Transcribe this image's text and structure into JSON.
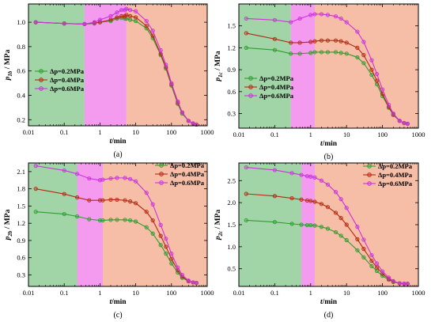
{
  "colors": {
    "series": [
      "#2e9e2e",
      "#b52a12",
      "#cc33dd"
    ],
    "bands": [
      "#6fbf7a",
      "#ee66e6",
      "#f19a78"
    ]
  },
  "chart_data": [
    {
      "type": "line",
      "panel_label": "(a)",
      "ylabel_symbol": "p",
      "ylabel_sub": "1b",
      "ylabel_unit": " / MPa",
      "xlabel_symbol": "t",
      "xlabel_unit": "/min",
      "xscale": "log",
      "xlim": [
        0.01,
        1000
      ],
      "ylim": [
        0.15,
        1.15
      ],
      "xticks": [
        0.01,
        0.1,
        1,
        10,
        100,
        1000
      ],
      "xtick_labels": [
        "0.01",
        "0.1",
        "1",
        "10",
        "100",
        "1000"
      ],
      "yticks": [
        0.2,
        0.4,
        0.6,
        0.8,
        1.0
      ],
      "ytick_labels": [
        "0.2",
        "0.4",
        "0.6",
        "0.8",
        "1.0"
      ],
      "bands": [
        [
          0.01,
          0.37
        ],
        [
          0.37,
          5.5
        ],
        [
          5.5,
          1000
        ]
      ],
      "legend_position": "left",
      "series": [
        {
          "name": "Δp=0.2MPa",
          "x": [
            0.016,
            0.1,
            0.37,
            0.7,
            1,
            2,
            3,
            4,
            5,
            5.5,
            7,
            10,
            20,
            30,
            50,
            70,
            100,
            150,
            200,
            300,
            400,
            500
          ],
          "y": [
            1.0,
            0.99,
            0.985,
            0.99,
            1.0,
            1.01,
            1.03,
            1.035,
            1.03,
            1.03,
            1.02,
            1.01,
            0.95,
            0.87,
            0.73,
            0.62,
            0.48,
            0.33,
            0.25,
            0.19,
            0.17,
            0.16
          ]
        },
        {
          "name": "Δp=0.4MPa",
          "x": [
            0.016,
            0.1,
            0.37,
            0.7,
            1,
            2,
            3,
            4,
            5,
            5.5,
            7,
            10,
            20,
            30,
            50,
            70,
            100,
            150,
            200,
            300,
            400,
            500
          ],
          "y": [
            1.0,
            0.99,
            0.985,
            0.995,
            1.0,
            1.02,
            1.04,
            1.05,
            1.05,
            1.06,
            1.05,
            1.04,
            0.97,
            0.89,
            0.74,
            0.63,
            0.49,
            0.34,
            0.26,
            0.19,
            0.17,
            0.16
          ]
        },
        {
          "name": "Δp=0.6MPa",
          "x": [
            0.016,
            0.1,
            0.37,
            0.7,
            1,
            2,
            3,
            4,
            5,
            5.5,
            7,
            10,
            20,
            30,
            50,
            70,
            100,
            150,
            200,
            300,
            400,
            500
          ],
          "y": [
            1.0,
            0.99,
            0.985,
            1.0,
            1.02,
            1.05,
            1.08,
            1.1,
            1.1,
            1.11,
            1.1,
            1.09,
            1.01,
            0.93,
            0.77,
            0.65,
            0.5,
            0.35,
            0.26,
            0.19,
            0.17,
            0.16
          ]
        }
      ]
    },
    {
      "type": "line",
      "panel_label": "(b)",
      "ylabel_symbol": "p",
      "ylabel_sub": "1c",
      "ylabel_unit": " / MPa",
      "xlabel_symbol": "t",
      "xlabel_unit": "/min",
      "xscale": "log",
      "xlim": [
        0.01,
        1000
      ],
      "ylim": [
        0.1,
        1.8
      ],
      "xticks": [
        0.01,
        0.1,
        1,
        10,
        100,
        1000
      ],
      "xtick_labels": [
        "0.01",
        "0.1",
        "1",
        "10",
        "100",
        "1000"
      ],
      "yticks": [
        0.3,
        0.6,
        0.9,
        1.2,
        1.5
      ],
      "ytick_labels": [
        "0.3",
        "0.6",
        "0.9",
        "1.2",
        "1.5"
      ],
      "bands": [
        [
          0.01,
          0.28
        ],
        [
          0.28,
          1.3
        ],
        [
          1.3,
          1000
        ]
      ],
      "legend_position": "bottom-left",
      "series": [
        {
          "name": "Δp=0.2MPa",
          "x": [
            0.016,
            0.1,
            0.28,
            0.5,
            1,
            1.3,
            2,
            3,
            5,
            7,
            10,
            20,
            30,
            50,
            70,
            100,
            150,
            200,
            300,
            400,
            500
          ],
          "y": [
            1.2,
            1.17,
            1.12,
            1.12,
            1.13,
            1.14,
            1.14,
            1.14,
            1.14,
            1.13,
            1.12,
            1.07,
            0.99,
            0.83,
            0.7,
            0.54,
            0.38,
            0.28,
            0.2,
            0.17,
            0.16
          ]
        },
        {
          "name": "Δp=0.4MPa",
          "x": [
            0.016,
            0.1,
            0.28,
            0.5,
            1,
            1.3,
            2,
            3,
            5,
            7,
            10,
            20,
            30,
            50,
            70,
            100,
            150,
            200,
            300,
            400,
            500
          ],
          "y": [
            1.4,
            1.32,
            1.27,
            1.27,
            1.28,
            1.29,
            1.3,
            1.3,
            1.3,
            1.29,
            1.27,
            1.2,
            1.1,
            0.9,
            0.75,
            0.57,
            0.39,
            0.29,
            0.2,
            0.17,
            0.16
          ]
        },
        {
          "name": "Δp=0.6MPa",
          "x": [
            0.016,
            0.1,
            0.28,
            0.5,
            1,
            1.3,
            2,
            3,
            5,
            7,
            10,
            20,
            30,
            50,
            70,
            100,
            150,
            200,
            300,
            400,
            500
          ],
          "y": [
            1.6,
            1.58,
            1.55,
            1.6,
            1.65,
            1.66,
            1.66,
            1.65,
            1.63,
            1.6,
            1.55,
            1.42,
            1.28,
            1.03,
            0.84,
            0.63,
            0.42,
            0.3,
            0.2,
            0.17,
            0.16
          ]
        }
      ]
    },
    {
      "type": "line",
      "panel_label": "(c)",
      "ylabel_symbol": "p",
      "ylabel_sub": "2b",
      "ylabel_unit": " / MPa",
      "xlabel_symbol": "t",
      "xlabel_unit": "/min",
      "xscale": "log",
      "xlim": [
        0.01,
        1000
      ],
      "ylim": [
        0.1,
        2.25
      ],
      "xticks": [
        0.01,
        0.1,
        1,
        10,
        100,
        1000
      ],
      "xtick_labels": [
        "0.01",
        "0.1",
        "1",
        "10",
        "100",
        "1000"
      ],
      "yticks": [
        0.3,
        0.6,
        0.9,
        1.2,
        1.5,
        1.8,
        2.1
      ],
      "ytick_labels": [
        "0.3",
        "0.6",
        "0.9",
        "1.2",
        "1.5",
        "1.8",
        "2.1"
      ],
      "bands": [
        [
          0.01,
          0.23
        ],
        [
          0.23,
          1.2
        ],
        [
          1.2,
          1000
        ]
      ],
      "legend_position": "top-right",
      "series": [
        {
          "name": "Δp=0.2MPa",
          "x": [
            0.016,
            0.1,
            0.23,
            0.5,
            1,
            1.2,
            2,
            3,
            5,
            7,
            10,
            20,
            30,
            50,
            70,
            100,
            150,
            200,
            300,
            400,
            500
          ],
          "y": [
            1.4,
            1.36,
            1.32,
            1.27,
            1.25,
            1.25,
            1.26,
            1.26,
            1.26,
            1.25,
            1.23,
            1.13,
            1.02,
            0.82,
            0.67,
            0.5,
            0.34,
            0.25,
            0.19,
            0.17,
            0.16
          ]
        },
        {
          "name": "Δp=0.4MPa",
          "x": [
            0.016,
            0.1,
            0.23,
            0.5,
            1,
            1.2,
            2,
            3,
            5,
            7,
            10,
            20,
            30,
            50,
            70,
            100,
            150,
            200,
            300,
            400,
            500
          ],
          "y": [
            1.8,
            1.71,
            1.65,
            1.6,
            1.6,
            1.6,
            1.61,
            1.61,
            1.6,
            1.58,
            1.55,
            1.4,
            1.25,
            0.98,
            0.79,
            0.58,
            0.38,
            0.27,
            0.19,
            0.17,
            0.16
          ]
        },
        {
          "name": "Δp=0.6MPa",
          "x": [
            0.016,
            0.1,
            0.23,
            0.5,
            1,
            1.2,
            2,
            3,
            5,
            7,
            10,
            20,
            30,
            50,
            70,
            100,
            150,
            200,
            300,
            400,
            500
          ],
          "y": [
            2.2,
            2.12,
            2.06,
            1.98,
            1.95,
            1.96,
            1.98,
            1.99,
            1.99,
            1.97,
            1.93,
            1.73,
            1.53,
            1.17,
            0.93,
            0.67,
            0.43,
            0.3,
            0.2,
            0.17,
            0.16
          ]
        }
      ]
    },
    {
      "type": "line",
      "panel_label": "(d)",
      "ylabel_symbol": "p",
      "ylabel_sub": "2c",
      "ylabel_unit": " / MPa",
      "xlabel_symbol": "t",
      "xlabel_unit": "/min",
      "xscale": "log",
      "xlim": [
        0.01,
        1000
      ],
      "ylim": [
        0.1,
        2.9
      ],
      "xticks": [
        0.01,
        0.1,
        1,
        10,
        100,
        1000
      ],
      "xtick_labels": [
        "0.01",
        "0.1",
        "1",
        "10",
        "100",
        "1000"
      ],
      "yticks": [
        0.5,
        1.0,
        1.5,
        2.0,
        2.5
      ],
      "ytick_labels": [
        "0.5",
        "1.0",
        "1.5",
        "2.0",
        "2.5"
      ],
      "bands": [
        [
          0.01,
          0.55
        ],
        [
          0.55,
          1.3
        ],
        [
          1.3,
          1000
        ]
      ],
      "legend_position": "top-right",
      "series": [
        {
          "name": "Δp=0.2MPa",
          "x": [
            0.016,
            0.1,
            0.3,
            0.55,
            0.8,
            1,
            1.3,
            2,
            3,
            5,
            7,
            10,
            20,
            30,
            50,
            70,
            100,
            150,
            200,
            300,
            400,
            500
          ],
          "y": [
            1.6,
            1.56,
            1.52,
            1.5,
            1.49,
            1.49,
            1.48,
            1.45,
            1.41,
            1.33,
            1.25,
            1.15,
            0.92,
            0.76,
            0.56,
            0.45,
            0.34,
            0.25,
            0.2,
            0.17,
            0.16,
            0.16
          ]
        },
        {
          "name": "Δp=0.4MPa",
          "x": [
            0.016,
            0.1,
            0.3,
            0.55,
            0.8,
            1,
            1.3,
            2,
            3,
            5,
            7,
            10,
            20,
            30,
            50,
            70,
            100,
            150,
            200,
            300,
            400,
            500
          ],
          "y": [
            2.2,
            2.15,
            2.1,
            2.07,
            2.05,
            2.04,
            2.02,
            1.97,
            1.9,
            1.77,
            1.65,
            1.5,
            1.17,
            0.95,
            0.68,
            0.53,
            0.39,
            0.27,
            0.21,
            0.17,
            0.16,
            0.16
          ]
        },
        {
          "name": "Δp=0.6MPa",
          "x": [
            0.016,
            0.1,
            0.3,
            0.55,
            0.8,
            1,
            1.3,
            2,
            3,
            5,
            7,
            10,
            20,
            30,
            50,
            70,
            100,
            150,
            200,
            300,
            400,
            500
          ],
          "y": [
            2.8,
            2.74,
            2.67,
            2.63,
            2.6,
            2.59,
            2.57,
            2.5,
            2.41,
            2.24,
            2.08,
            1.88,
            1.45,
            1.16,
            0.81,
            0.62,
            0.44,
            0.3,
            0.22,
            0.17,
            0.16,
            0.16
          ]
        }
      ]
    }
  ]
}
